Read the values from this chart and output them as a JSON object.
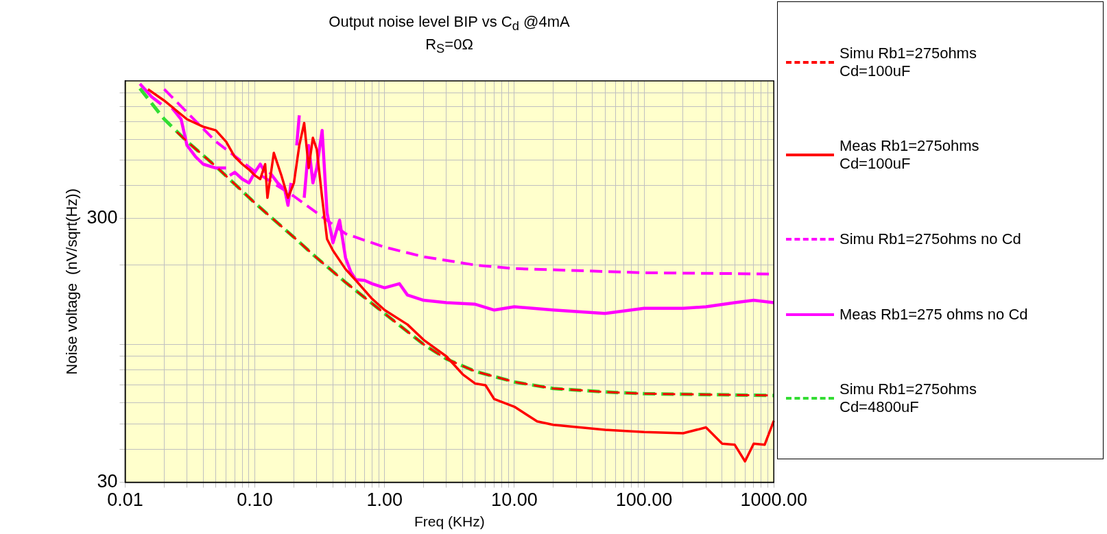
{
  "chart_data": {
    "type": "line",
    "title": "Output noise level BIP vs C$_{d}$ @4mA",
    "subtitle": "R$_{S}$=0Ω",
    "xlabel": "Freq (KHz)",
    "ylabel": "Noise voltage  (nV/sqrt(Hz))",
    "log": "xy",
    "grid": true,
    "legend": "right",
    "marker": "none",
    "xlim": [
      0.01,
      1000
    ],
    "ylim": [
      30,
      1000
    ],
    "xticks": [
      {
        "value": 0.01,
        "label": "0.01"
      },
      {
        "value": 0.02,
        "label": null
      },
      {
        "value": 0.03,
        "label": null
      },
      {
        "value": 0.04,
        "label": null
      },
      {
        "value": 0.05,
        "label": null
      },
      {
        "value": 0.06,
        "label": null
      },
      {
        "value": 0.07,
        "label": null
      },
      {
        "value": 0.08,
        "label": null
      },
      {
        "value": 0.09,
        "label": null
      },
      {
        "value": 0.1,
        "label": "0.10"
      },
      {
        "value": 0.2,
        "label": null
      },
      {
        "value": 0.3,
        "label": null
      },
      {
        "value": 0.4,
        "label": null
      },
      {
        "value": 0.5,
        "label": null
      },
      {
        "value": 0.6,
        "label": null
      },
      {
        "value": 0.7,
        "label": null
      },
      {
        "value": 0.8,
        "label": null
      },
      {
        "value": 0.9,
        "label": null
      },
      {
        "value": 1,
        "label": "1.00"
      },
      {
        "value": 2,
        "label": null
      },
      {
        "value": 3,
        "label": null
      },
      {
        "value": 4,
        "label": null
      },
      {
        "value": 5,
        "label": null
      },
      {
        "value": 6,
        "label": null
      },
      {
        "value": 7,
        "label": null
      },
      {
        "value": 8,
        "label": null
      },
      {
        "value": 9,
        "label": null
      },
      {
        "value": 10,
        "label": "10.00"
      },
      {
        "value": 20,
        "label": null
      },
      {
        "value": 30,
        "label": null
      },
      {
        "value": 40,
        "label": null
      },
      {
        "value": 50,
        "label": null
      },
      {
        "value": 60,
        "label": null
      },
      {
        "value": 70,
        "label": null
      },
      {
        "value": 80,
        "label": null
      },
      {
        "value": 90,
        "label": null
      },
      {
        "value": 100,
        "label": "100.00"
      },
      {
        "value": 200,
        "label": null
      },
      {
        "value": 300,
        "label": null
      },
      {
        "value": 400,
        "label": null
      },
      {
        "value": 500,
        "label": null
      },
      {
        "value": 600,
        "label": null
      },
      {
        "value": 700,
        "label": null
      },
      {
        "value": 800,
        "label": null
      },
      {
        "value": 900,
        "label": null
      },
      {
        "value": 1000,
        "label": "1000.00"
      }
    ],
    "yticks": [
      30,
      {
        "value": 40,
        "label": null
      },
      {
        "value": 50,
        "label": null
      },
      {
        "value": 60,
        "label": null
      },
      {
        "value": 70,
        "label": null
      },
      {
        "value": 80,
        "label": null
      },
      {
        "value": 90,
        "label": null
      },
      {
        "value": 100,
        "label": null
      },
      {
        "value": 200,
        "label": null
      },
      300,
      {
        "value": 400,
        "label": null
      },
      {
        "value": 500,
        "label": null
      },
      {
        "value": 600,
        "label": null
      },
      {
        "value": 700,
        "label": null
      },
      {
        "value": 800,
        "label": null
      },
      {
        "value": 900,
        "label": null
      }
    ],
    "series": [
      {
        "name": "Simu Rb1=275ohms\nCd=100uF",
        "color": "#ff0000",
        "line_style": "dashed",
        "x": [
          0.025,
          0.03,
          0.05,
          0.1,
          0.2,
          0.3,
          0.5,
          1,
          2,
          3,
          5,
          10,
          20,
          50,
          100,
          1000
        ],
        "values": [
          640,
          589,
          474,
          344,
          255,
          213,
          172,
          131,
          100,
          88,
          79,
          72,
          68,
          66,
          65,
          64
        ]
      },
      {
        "name": "Meas Rb1=275ohms\nCd=100uF",
        "color": "#ff0000",
        "line_style": "solid",
        "x": [
          0.015,
          0.02,
          0.03,
          0.04,
          0.05,
          0.06,
          0.07,
          0.08,
          0.09,
          0.1,
          0.11,
          0.12,
          0.125,
          0.14,
          0.16,
          0.18,
          0.2,
          0.22,
          0.24,
          0.26,
          0.28,
          0.3,
          0.33,
          0.36,
          0.4,
          0.5,
          0.6,
          0.8,
          1,
          1.5,
          2,
          3,
          4,
          5,
          6,
          7,
          10,
          15,
          20,
          50,
          100,
          200,
          300,
          400,
          500,
          600,
          700,
          850,
          1000
        ],
        "values": [
          929,
          842,
          715,
          670,
          649,
          588,
          515,
          483,
          461,
          438,
          424,
          483,
          360,
          533,
          438,
          360,
          410,
          569,
          692,
          467,
          608,
          550,
          360,
          251,
          227,
          193,
          175,
          149,
          135,
          119,
          104,
          90,
          77,
          71,
          70,
          62,
          58,
          51,
          49.5,
          47.4,
          46.5,
          46,
          48.4,
          42,
          41.6,
          36,
          42,
          41.6,
          51.3
        ]
      },
      {
        "name": "Simu Rb1=275ohms no Cd",
        "color": "#ff00ff",
        "line_style": "dashed",
        "x": [
          0.02,
          0.05,
          0.1,
          0.2,
          0.5,
          1,
          2,
          5,
          10,
          100,
          1000
        ],
        "values": [
          930,
          589,
          453,
          365,
          263,
          234,
          215,
          200,
          194,
          187,
          185
        ]
      },
      {
        "name": "Meas Rb1=275 ohms no Cd",
        "color": "#ff00ff",
        "line_style": "solid",
        "x": [
          0.013,
          0.016,
          0.019,
          0.021,
          0.023,
          0.027,
          0.03,
          0.035,
          0.04,
          0.05,
          0.06,
          0.062,
          0.064,
          0.07,
          0.08,
          0.09,
          0.1,
          0.11,
          0.12,
          0.125,
          0.13,
          0.15,
          0.17,
          0.18,
          0.19,
          0.2,
          0.21,
          0.22,
          0.23,
          0.24,
          0.26,
          0.28,
          0.3,
          0.33,
          0.36,
          0.4,
          0.45,
          0.5,
          0.55,
          0.6,
          0.7,
          0.8,
          1,
          1.3,
          1.5,
          2,
          3,
          5,
          7,
          10,
          20,
          50,
          100,
          200,
          300,
          500,
          700,
          1000
        ],
        "values": [
          975,
          870,
          815,
          null,
          789,
          715,
          569,
          515,
          483,
          467,
          467,
          null,
          438,
          450,
          424,
          410,
          450,
          483,
          450,
          null,
          450,
          410,
          386,
          337,
          410,
          null,
          569,
          740,
          null,
          360,
          569,
          410,
          467,
          649,
          316,
          243,
          296,
          213,
          188,
          176,
          175,
          170,
          164,
          170,
          154,
          147,
          144,
          142,
          135,
          139,
          135,
          131,
          137,
          137,
          139,
          144,
          147,
          144
        ]
      },
      {
        "name": "Simu Rb1=275ohms\nCd=4800uF",
        "color": "#33dd33",
        "line_style": "dashed",
        "x": [
          0.013,
          0.02,
          0.03,
          0.05,
          0.1,
          0.2,
          0.3,
          0.5,
          1,
          2,
          3,
          5,
          10,
          20,
          50,
          100,
          1000
        ],
        "values": [
          936,
          716,
          589,
          474,
          344,
          255,
          213,
          172,
          131,
          100,
          88,
          79,
          72,
          68,
          66,
          65,
          64
        ]
      }
    ]
  }
}
